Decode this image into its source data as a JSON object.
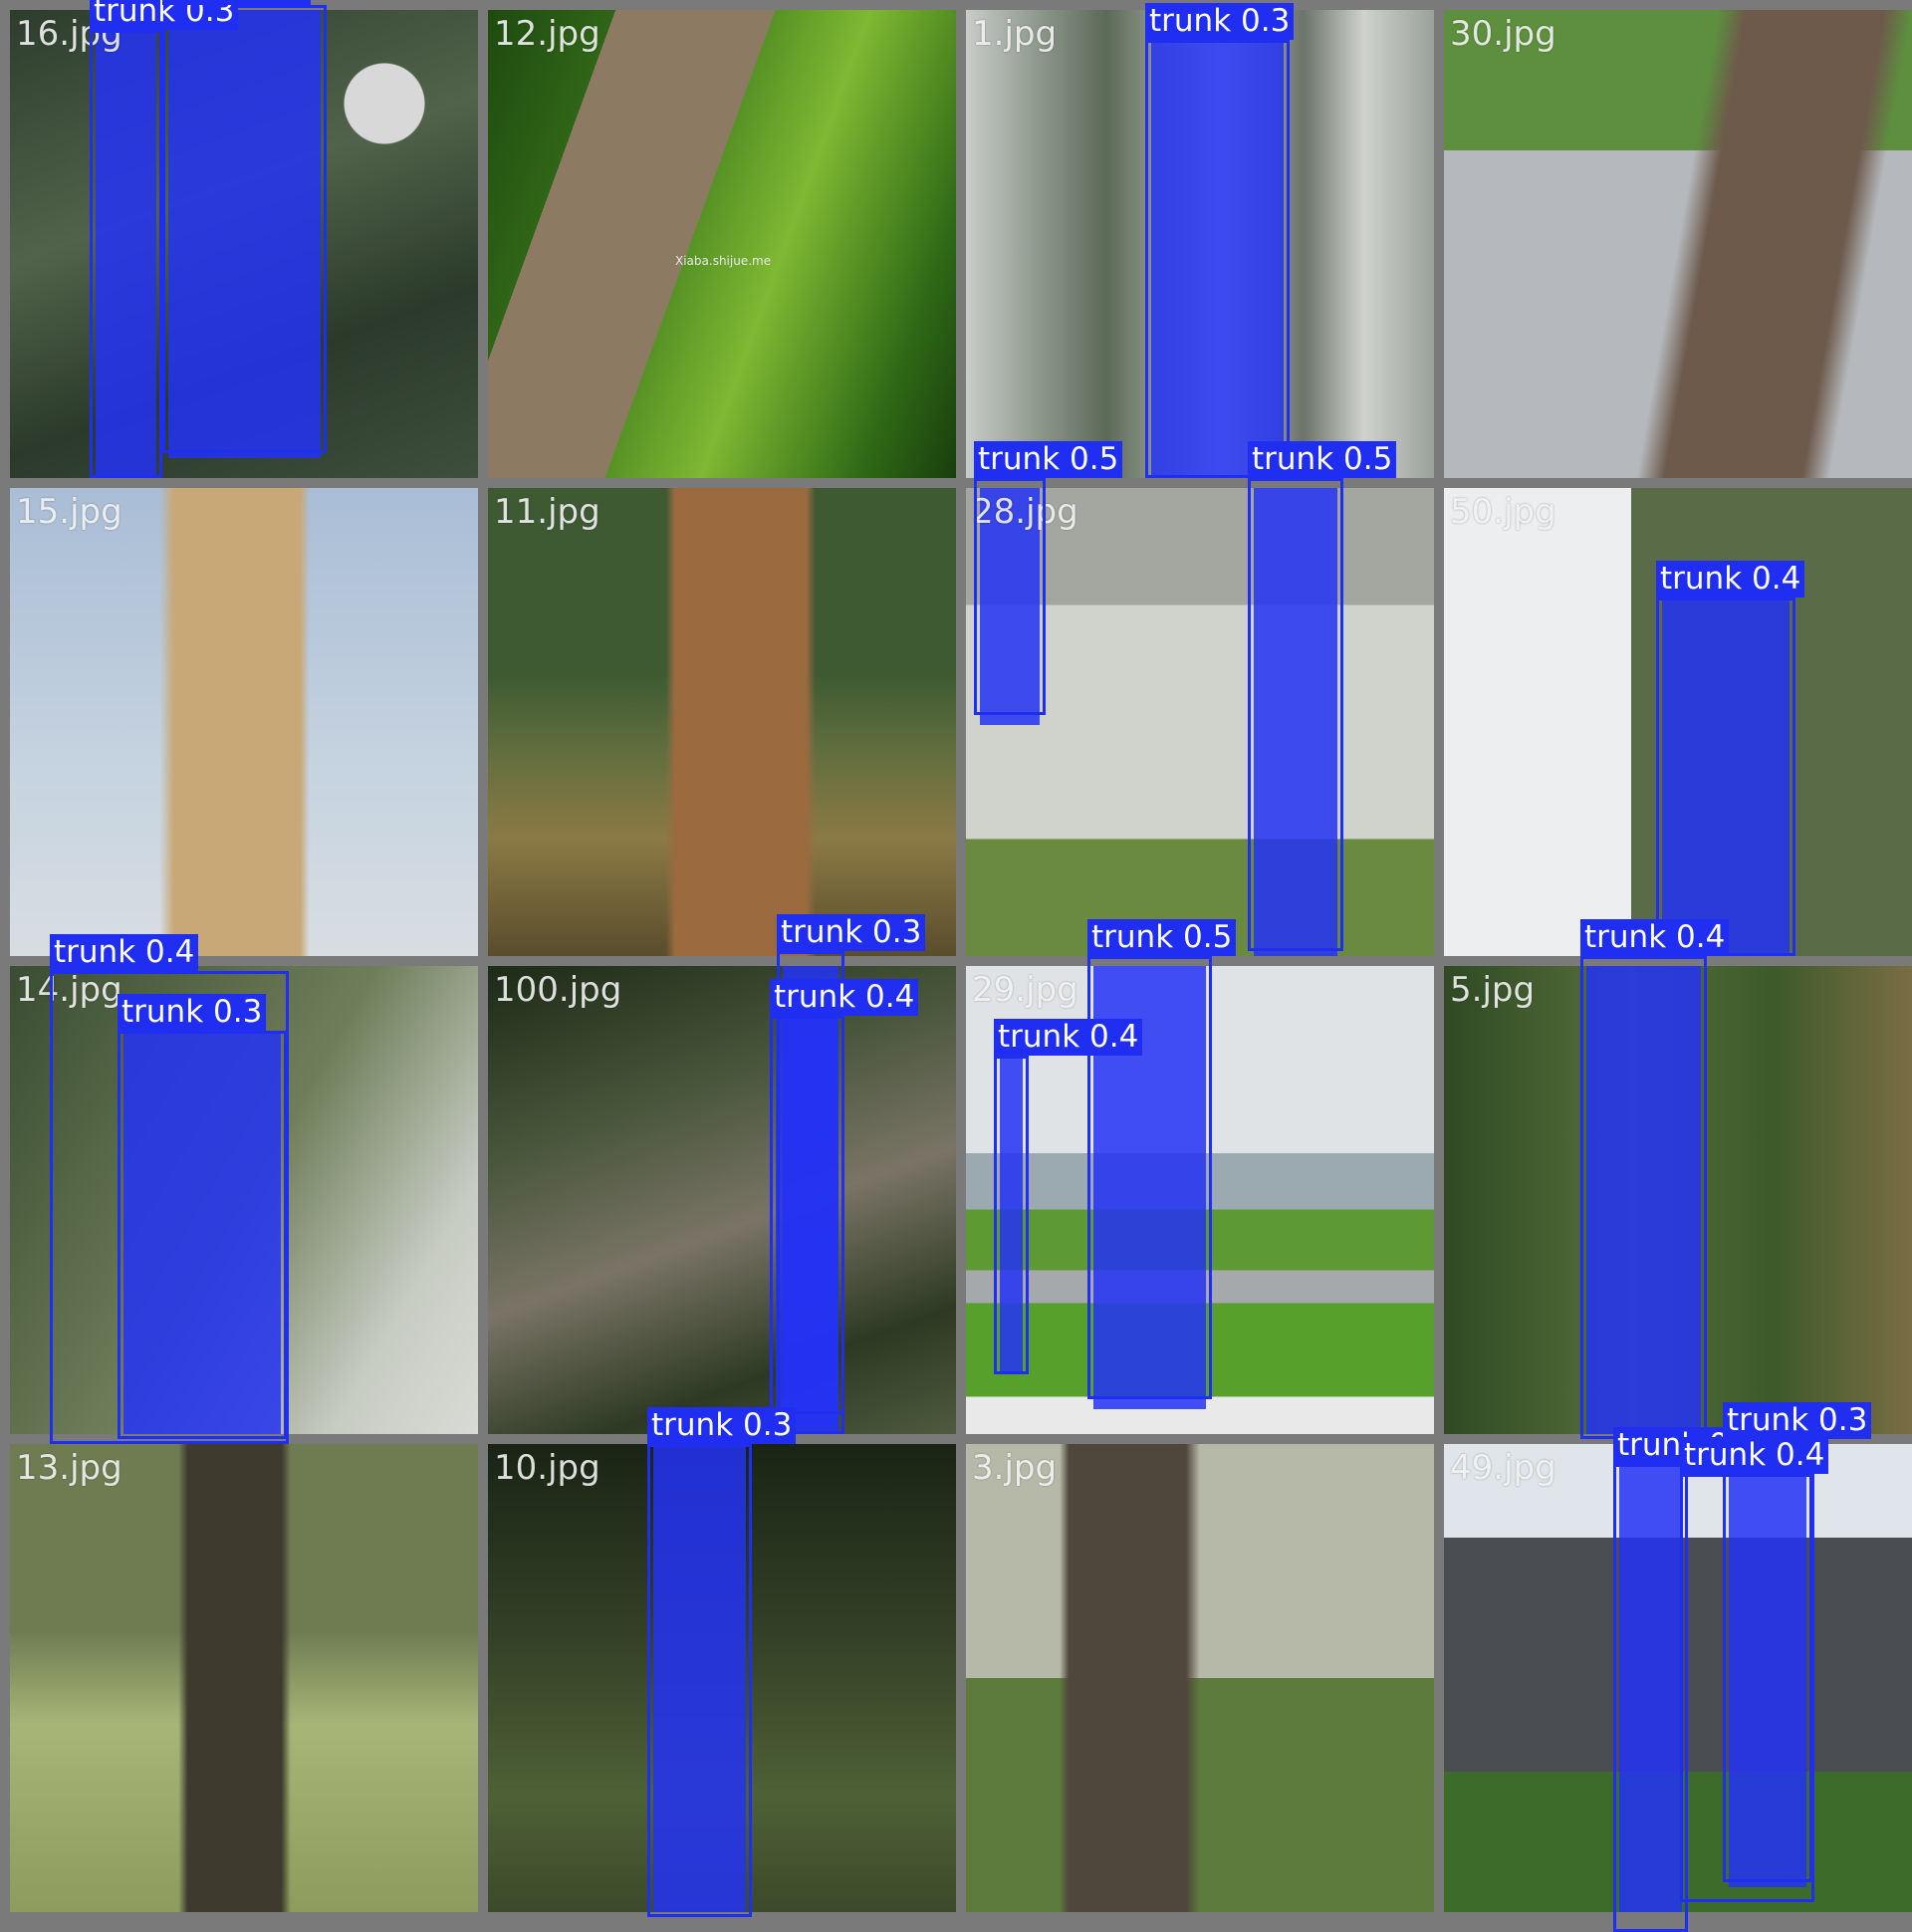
{
  "theme": {
    "box_color": "#1f2ef0",
    "mask_color": "#2332f5",
    "bg": "#7a7a7a"
  },
  "tiles": [
    {
      "file": "16.jpg",
      "labels": [
        "trunk 0.3",
        "trunk 0.3"
      ],
      "scene": "fence-foliage"
    },
    {
      "file": "12.jpg",
      "labels": [],
      "watermark": "Xiaba.shijue.me",
      "scene": "diagonal-bark"
    },
    {
      "file": "1.jpg",
      "labels": [
        "trunk 0.3"
      ],
      "scene": "pine-forest"
    },
    {
      "file": "30.jpg",
      "labels": [],
      "scene": "sidewalk-tree"
    },
    {
      "file": "15.jpg",
      "labels": [],
      "scene": "palm-sky"
    },
    {
      "file": "11.jpg",
      "labels": [],
      "scene": "ponderosa"
    },
    {
      "file": "28.jpg",
      "labels": [
        "trunk 0.5",
        "trunk 0.5"
      ],
      "scene": "railing-park"
    },
    {
      "file": "50.jpg",
      "labels": [
        "trunk 0.4"
      ],
      "scene": "campus-road"
    },
    {
      "file": "14.jpg",
      "labels": [
        "trunk 0.4",
        "trunk 0.3"
      ],
      "scene": "conifer-blur"
    },
    {
      "file": "100.jpg",
      "labels": [
        "trunk 0.3",
        "trunk 0.4"
      ],
      "scene": "forest-floor"
    },
    {
      "file": "29.jpg",
      "labels": [
        "trunk 0.5",
        "trunk 0.4"
      ],
      "scene": "lake-lawn"
    },
    {
      "file": "5.jpg",
      "labels": [
        "trunk 0.4"
      ],
      "scene": "green-woods"
    },
    {
      "file": "13.jpg",
      "labels": [],
      "scene": "meadow-trunk"
    },
    {
      "file": "10.jpg",
      "labels": [
        "trunk 0.3"
      ],
      "scene": "dark-forest"
    },
    {
      "file": "3.jpg",
      "labels": [],
      "scene": "woodpecker"
    },
    {
      "file": "49.jpg",
      "labels": [
        "trunk 0.5",
        "trunk 0.4",
        "trunk 0.3"
      ],
      "scene": "building-hedge"
    }
  ]
}
